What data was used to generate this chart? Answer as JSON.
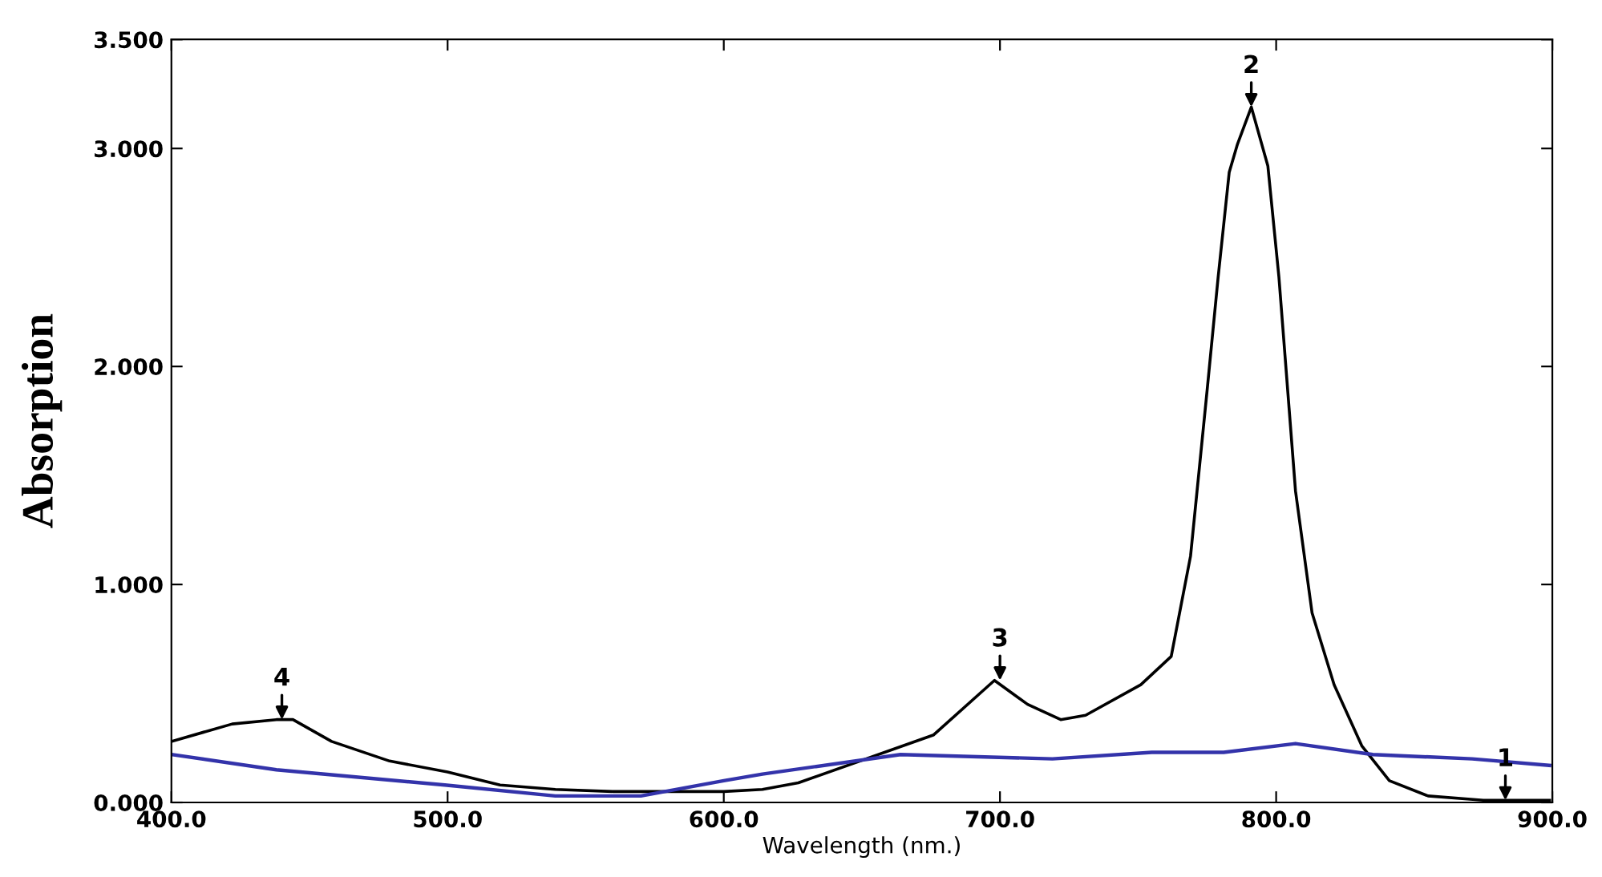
{
  "chart_data": {
    "type": "line",
    "xlabel": "Wavelength (nm.)",
    "ylabel": "Absorption",
    "xlim": [
      400,
      900
    ],
    "ylim": [
      0,
      3.5
    ],
    "xticks": [
      {
        "value": 400,
        "label": "400.0"
      },
      {
        "value": 500,
        "label": "500.0"
      },
      {
        "value": 600,
        "label": "600.0"
      },
      {
        "value": 700,
        "label": "700.0"
      },
      {
        "value": 800,
        "label": "800.0"
      },
      {
        "value": 900,
        "label": "900.0"
      }
    ],
    "yticks": [
      {
        "value": 0,
        "label": "0.000"
      },
      {
        "value": 1,
        "label": "1.000"
      },
      {
        "value": 2,
        "label": "2.000"
      },
      {
        "value": 3,
        "label": "3.000"
      },
      {
        "value": 3.5,
        "label": "3.500"
      }
    ],
    "grid": false,
    "legend": false,
    "marker": "none",
    "line_style": "solid",
    "series": [
      {
        "color": "#000000",
        "x": [
          400,
          422,
          438,
          444,
          458,
          479,
          500,
          519,
          539,
          560,
          580,
          600,
          614,
          627,
          676,
          698,
          710,
          722,
          731,
          751,
          762,
          769,
          775,
          779,
          783,
          786,
          791,
          797,
          801,
          807,
          813,
          821,
          831,
          841,
          855,
          875,
          899
        ],
        "values": [
          0.28,
          0.36,
          0.38,
          0.38,
          0.28,
          0.19,
          0.14,
          0.08,
          0.06,
          0.05,
          0.05,
          0.05,
          0.06,
          0.09,
          0.31,
          0.56,
          0.45,
          0.38,
          0.4,
          0.54,
          0.67,
          1.13,
          1.89,
          2.41,
          2.89,
          3.02,
          3.19,
          2.92,
          2.41,
          1.43,
          0.87,
          0.54,
          0.26,
          0.1,
          0.03,
          0.01,
          0.01
        ]
      },
      {
        "color": "#3333aa",
        "x": [
          400,
          438,
          499,
          539,
          570,
          600,
          614,
          664,
          719,
          755,
          781,
          807,
          835,
          871,
          899
        ],
        "values": [
          0.22,
          0.15,
          0.08,
          0.03,
          0.03,
          0.1,
          0.13,
          0.22,
          0.2,
          0.23,
          0.23,
          0.27,
          0.22,
          0.2,
          0.17
        ]
      }
    ],
    "annotations": [
      {
        "text": "1",
        "x": 883,
        "y": 0.01
      },
      {
        "text": "2",
        "x": 791,
        "y": 3.19
      },
      {
        "text": "3",
        "x": 700,
        "y": 0.56
      },
      {
        "text": "4",
        "x": 440,
        "y": 0.38
      }
    ]
  }
}
